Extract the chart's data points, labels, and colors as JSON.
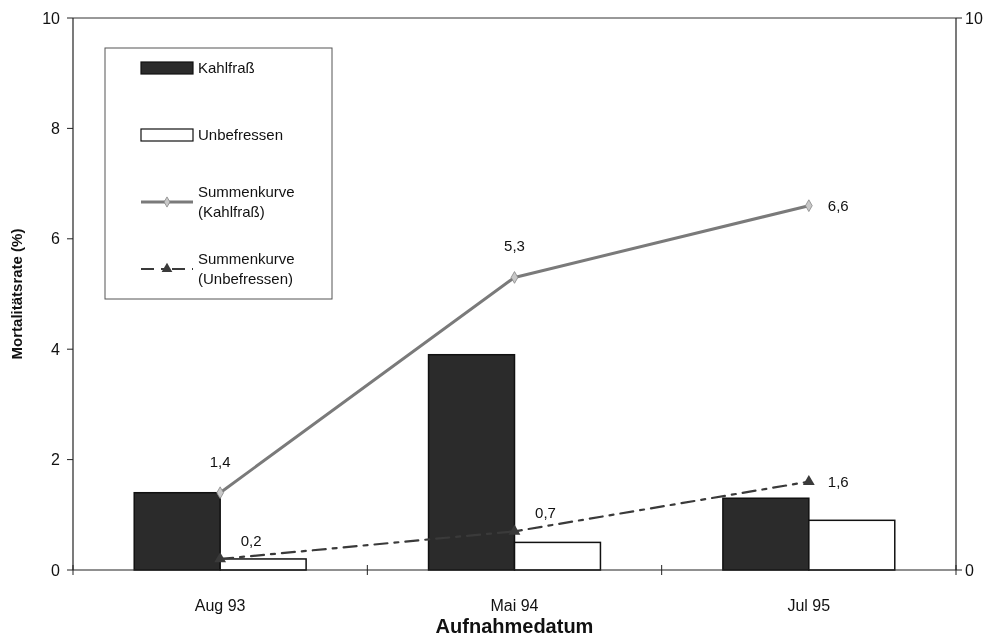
{
  "chart_data": {
    "type": "bar",
    "xlabel": "Aufnahmedatum",
    "ylabel": "Mortalitätsrate (%)",
    "categories": [
      "Aug 93",
      "Mai 94",
      "Jul 95"
    ],
    "ylim": [
      0,
      10
    ],
    "yticks": [
      0,
      2,
      4,
      6,
      8,
      10
    ],
    "y2lim": [
      0,
      10
    ],
    "y2ticks": [
      0,
      10
    ],
    "legend": "top left",
    "series": [
      {
        "name": "Kahlfraß",
        "color": "#2b2b2b",
        "values": [
          1.4,
          3.9,
          1.3
        ]
      },
      {
        "name": "Unbefressen",
        "color": "#ffffff",
        "values": [
          0.2,
          0.5,
          0.9
        ]
      },
      {
        "name": "Summenkurve\n(Kahlfraß)",
        "type": "line",
        "color": "#7a7a7a",
        "marker": "diamond",
        "line_style": "solid",
        "values": [
          1.4,
          5.3,
          6.6
        ],
        "value_labels": [
          "1,4",
          "5,3",
          "6,6"
        ]
      },
      {
        "name": "Summenkurve\n(Unbefressen)",
        "type": "line",
        "color": "#3a3a3a",
        "marker": "triangle",
        "line_style": "dashed",
        "values": [
          0.2,
          0.7,
          1.6
        ],
        "value_labels": [
          "0,2",
          "0,7",
          "1,6"
        ]
      }
    ]
  }
}
